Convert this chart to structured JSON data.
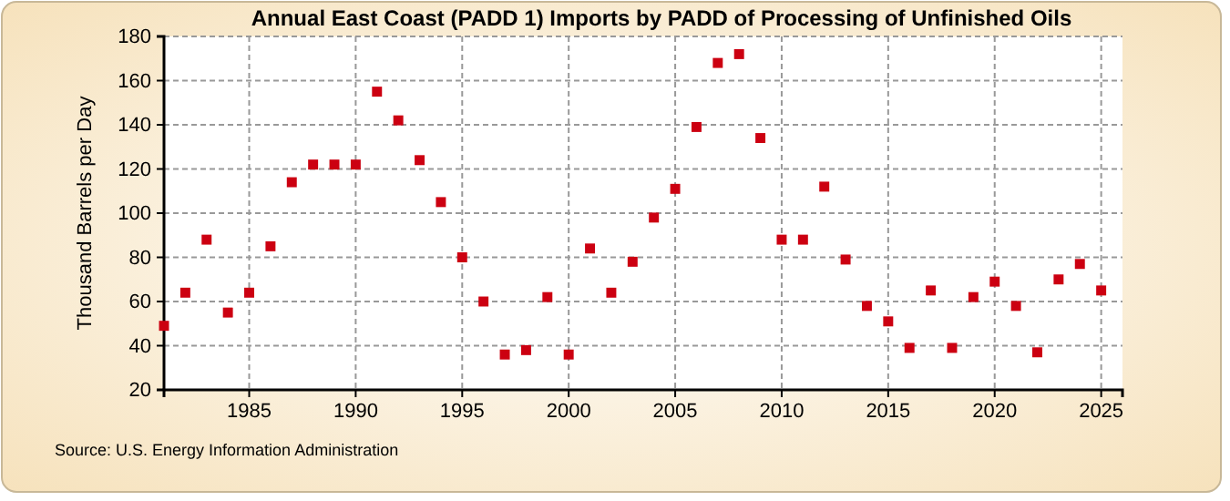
{
  "chart_data": {
    "type": "scatter",
    "title": "Annual East Coast (PADD 1) Imports by PADD of Processing of Unfinished Oils",
    "ylabel": "Thousand Barrels per Day",
    "x": [
      1981,
      1982,
      1983,
      1984,
      1985,
      1986,
      1987,
      1988,
      1989,
      1990,
      1991,
      1992,
      1993,
      1994,
      1995,
      1996,
      1997,
      1998,
      1999,
      2000,
      2001,
      2002,
      2003,
      2004,
      2005,
      2006,
      2007,
      2008,
      2009,
      2010,
      2011,
      2012,
      2013,
      2014,
      2015,
      2016,
      2017,
      2018,
      2019,
      2020,
      2021,
      2022,
      2023,
      2024,
      2025
    ],
    "series": [
      {
        "color": "#cc0011",
        "values": [
          49,
          64,
          88,
          55,
          64,
          85,
          114,
          122,
          122,
          122,
          155,
          142,
          124,
          105,
          80,
          60,
          36,
          38,
          62,
          36,
          84,
          64,
          78,
          98,
          111,
          139,
          168,
          172,
          134,
          88,
          88,
          112,
          79,
          58,
          51,
          39,
          65,
          39,
          62,
          69,
          58,
          37,
          70,
          77,
          65
        ]
      }
    ],
    "xlim": [
      1981,
      2026
    ],
    "xticks": [
      1985,
      1990,
      1995,
      2000,
      2005,
      2010,
      2015,
      2020,
      2025
    ],
    "ylim": [
      20,
      180
    ],
    "yticks": [
      20,
      40,
      60,
      80,
      100,
      120,
      140,
      160,
      180
    ],
    "grid": true,
    "marker": "square",
    "annotations": [
      "Source: U.S. Energy Information Administration"
    ]
  }
}
